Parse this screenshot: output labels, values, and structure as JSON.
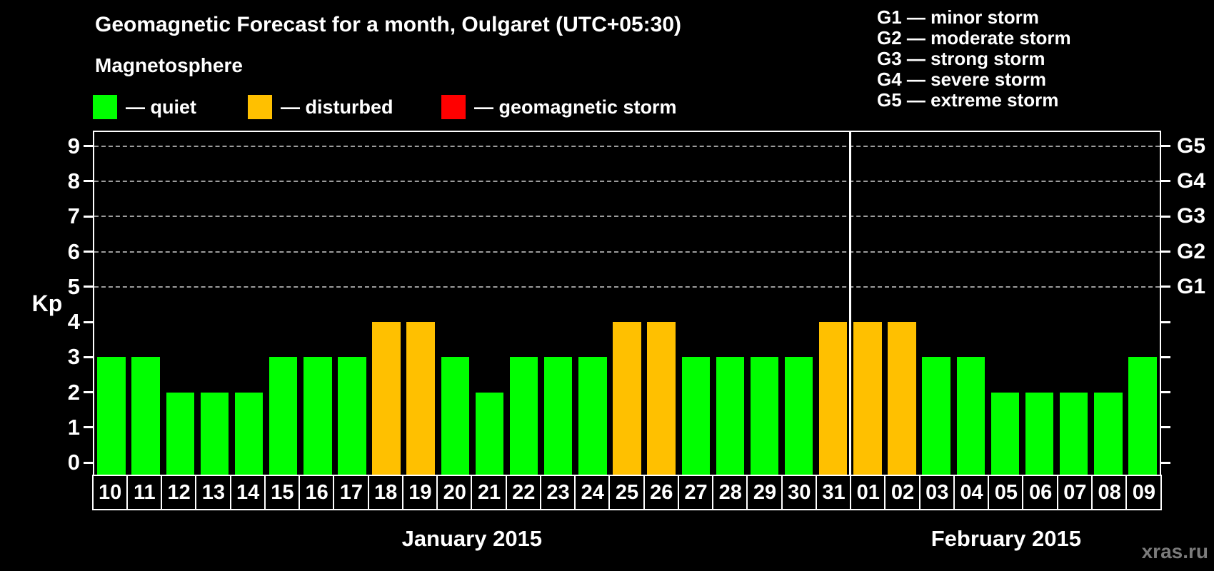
{
  "header": {
    "title": "Geomagnetic Forecast for a month, Oulgaret (UTC+05:30)",
    "subtitle": "Magnetosphere"
  },
  "legend": {
    "items": [
      {
        "label": "— quiet",
        "status": "quiet",
        "color": "#00FF00"
      },
      {
        "label": "— disturbed",
        "status": "disturbed",
        "color": "#FFC000"
      },
      {
        "label": "— geomagnetic storm",
        "status": "storm",
        "color": "#FF0000"
      }
    ]
  },
  "storm_scale_legend": [
    "G1 — minor storm",
    "G2 — moderate storm",
    "G3 — strong storm",
    "G4 — severe storm",
    "G5 — extreme storm"
  ],
  "watermark": "xras.ru",
  "colors": {
    "quiet": "#00FF00",
    "disturbed": "#FFC000",
    "storm": "#FF0000",
    "background": "#000000",
    "frame": "#FFFFFF",
    "gridline": "#9C9C9C",
    "text": "#FFFFFF",
    "watermark_text": "#7B7B7B"
  },
  "chart_data": {
    "type": "bar",
    "title": "Geomagnetic Forecast for a month, Oulgaret (UTC+05:30)",
    "xlabel": "",
    "ylabel": "Kp",
    "ylim": [
      0,
      9
    ],
    "y_ticks": [
      0,
      1,
      2,
      3,
      4,
      5,
      6,
      7,
      8,
      9
    ],
    "gridline_levels": [
      5,
      6,
      7,
      8,
      9
    ],
    "grid": "dashed-horizontal-upper-only",
    "legend_position": "top-left",
    "right_axis_labels": [
      {
        "kp": 5,
        "label": "G1"
      },
      {
        "kp": 6,
        "label": "G2"
      },
      {
        "kp": 7,
        "label": "G3"
      },
      {
        "kp": 8,
        "label": "G4"
      },
      {
        "kp": 9,
        "label": "G5"
      }
    ],
    "categories": [
      "10",
      "11",
      "12",
      "13",
      "14",
      "15",
      "16",
      "17",
      "18",
      "19",
      "20",
      "21",
      "22",
      "23",
      "24",
      "25",
      "26",
      "27",
      "28",
      "29",
      "30",
      "31",
      "01",
      "02",
      "03",
      "04",
      "05",
      "06",
      "07",
      "08",
      "09"
    ],
    "values": [
      3,
      3,
      2,
      2,
      2,
      3,
      3,
      3,
      4,
      4,
      3,
      2,
      3,
      3,
      3,
      4,
      4,
      3,
      3,
      3,
      3,
      4,
      4,
      4,
      3,
      3,
      2,
      2,
      2,
      2,
      3
    ],
    "statuses": [
      "quiet",
      "quiet",
      "quiet",
      "quiet",
      "quiet",
      "quiet",
      "quiet",
      "quiet",
      "disturbed",
      "disturbed",
      "quiet",
      "quiet",
      "quiet",
      "quiet",
      "quiet",
      "disturbed",
      "disturbed",
      "quiet",
      "quiet",
      "quiet",
      "quiet",
      "disturbed",
      "disturbed",
      "disturbed",
      "quiet",
      "quiet",
      "quiet",
      "quiet",
      "quiet",
      "quiet",
      "quiet"
    ],
    "months": [
      {
        "label": "January 2015",
        "days": 22
      },
      {
        "label": "February 2015",
        "days": 9
      }
    ]
  }
}
